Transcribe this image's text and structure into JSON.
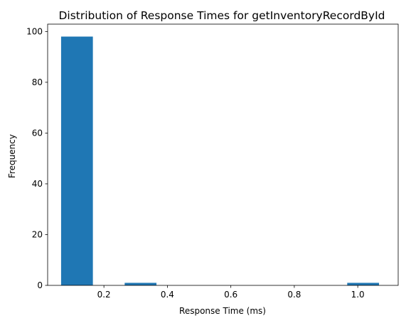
{
  "chart_data": {
    "type": "bar",
    "title": "Distribution of Response Times for getInventoryRecordById",
    "xlabel": "Response Time (ms)",
    "ylabel": "Frequency",
    "xlim": [
      0.0226,
      1.1274
    ],
    "ylim": [
      0,
      102.9
    ],
    "xticks": [
      0.2,
      0.4,
      0.6,
      0.8,
      1.0
    ],
    "xtick_labels": [
      "0.2",
      "0.4",
      "0.6",
      "0.8",
      "1.0"
    ],
    "yticks": [
      0,
      20,
      40,
      60,
      80,
      100
    ],
    "ytick_labels": [
      "0",
      "20",
      "40",
      "60",
      "80",
      "100"
    ],
    "bin_edges": [
      0.065,
      0.1652,
      0.2654,
      0.3656,
      0.4658,
      0.566,
      0.6662,
      0.7664,
      0.8666,
      0.9668,
      1.067
    ],
    "counts": [
      98,
      0,
      1,
      0,
      0,
      0,
      0,
      0,
      0,
      1
    ],
    "bar_color": "#1f77b4",
    "grid": false
  }
}
